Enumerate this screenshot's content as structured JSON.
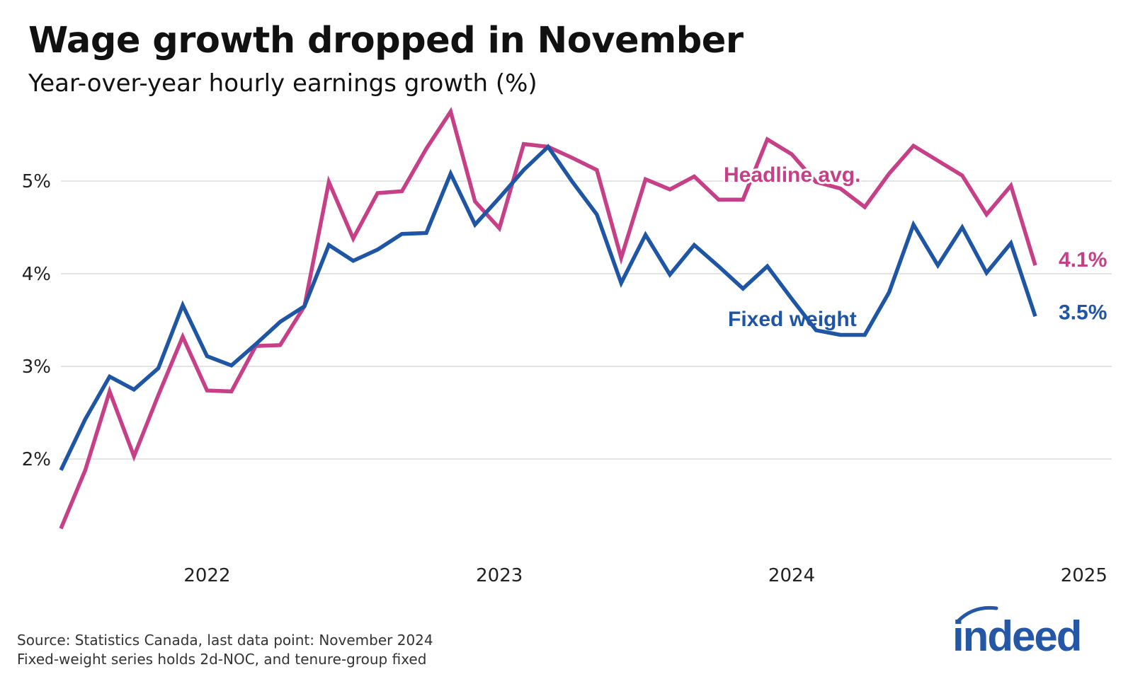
{
  "chart_data": {
    "type": "line",
    "title": "Wage growth dropped in November",
    "subtitle": "Year-over-year hourly earnings growth (%)",
    "xlabel": "",
    "ylabel": "",
    "x_start": "2021-07",
    "x_end": "2024-11",
    "x_ticks": [
      "2022",
      "2023",
      "2024",
      "2025"
    ],
    "y_ticks": [
      "2%",
      "3%",
      "4%",
      "5%"
    ],
    "y_tick_values": [
      2,
      3,
      4,
      5
    ],
    "ylim": [
      1.15,
      5.85
    ],
    "grid": "horizontal",
    "series": [
      {
        "name": "Headline avg.",
        "end_label": "4.1%",
        "color": "#c73f86",
        "values": [
          1.25,
          1.88,
          2.73,
          2.03,
          2.69,
          3.32,
          2.74,
          2.73,
          3.22,
          3.23,
          3.65,
          4.99,
          4.38,
          4.87,
          4.89,
          5.35,
          5.75,
          4.78,
          4.49,
          5.4,
          5.37,
          5.25,
          5.12,
          4.17,
          5.02,
          4.91,
          5.05,
          4.8,
          4.8,
          5.45,
          5.29,
          4.99,
          4.92,
          4.72,
          5.08,
          5.38,
          5.22,
          5.06,
          4.64,
          4.95,
          4.09
        ]
      },
      {
        "name": "Fixed weight",
        "end_label": "3.5%",
        "color": "#1f55a5",
        "values": [
          1.88,
          2.43,
          2.89,
          2.75,
          2.98,
          3.66,
          3.11,
          3.01,
          3.24,
          3.48,
          3.65,
          4.31,
          4.14,
          4.26,
          4.43,
          4.44,
          5.08,
          4.53,
          4.82,
          5.12,
          5.37,
          4.99,
          4.64,
          3.9,
          4.42,
          3.99,
          4.31,
          4.08,
          3.84,
          4.08,
          3.73,
          3.39,
          3.34,
          3.34,
          3.8,
          4.53,
          4.09,
          4.5,
          4.01,
          4.33,
          3.54
        ]
      }
    ]
  },
  "footer": {
    "source": "Source: Statistics Canada, last data point: November 2024",
    "note": "Fixed-weight series holds 2d-NOC, and tenure-group fixed"
  },
  "logo": {
    "text": "indeed",
    "color": "#2557a7"
  }
}
